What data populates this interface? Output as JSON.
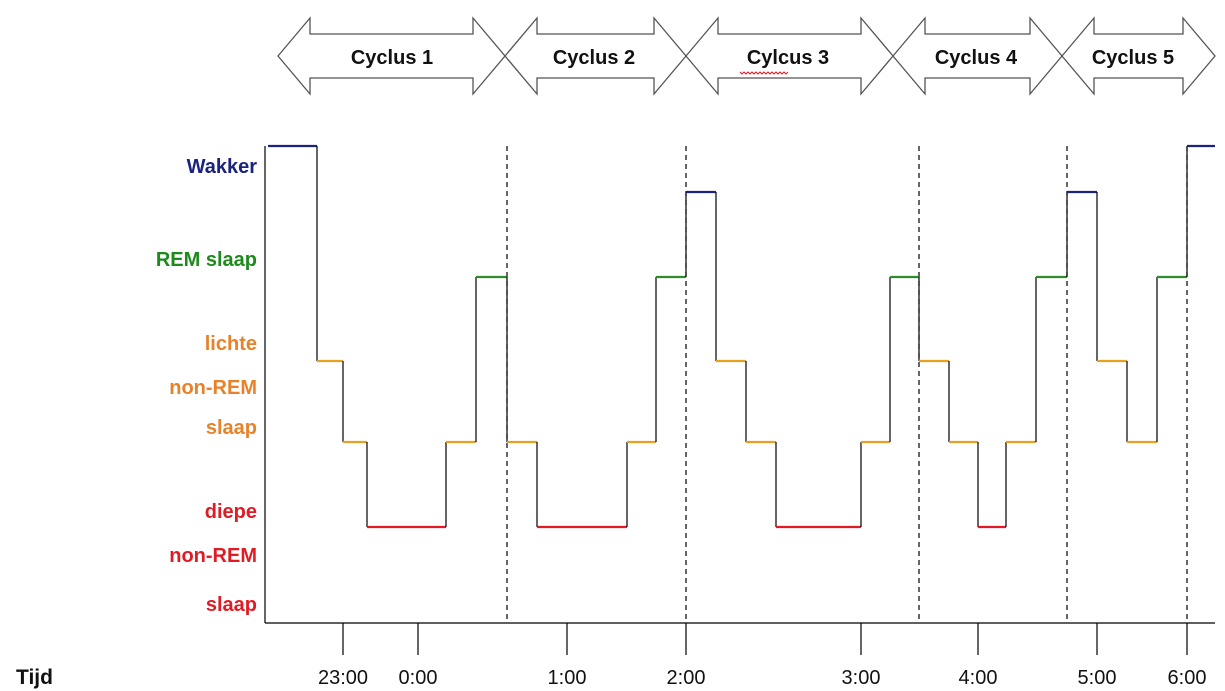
{
  "chart_data": {
    "type": "line",
    "title": "",
    "xlabel": "Tijd",
    "ylabel": "",
    "stage_levels": [
      {
        "key": "wake",
        "lines": [
          "Wakker"
        ],
        "color": "#1a237e"
      },
      {
        "key": "rem",
        "lines": [
          "REM slaap"
        ],
        "color": "#1e8a1e"
      },
      {
        "key": "light",
        "lines": [
          "lichte",
          "non-REM",
          "slaap"
        ],
        "color": "#e8822a"
      },
      {
        "key": "deep",
        "lines": [
          "diepe",
          "non-REM",
          "slaap"
        ],
        "color": "#e01b24"
      }
    ],
    "segment_colors": {
      "W": "#1a237e",
      "R": "#2e8b2e",
      "L": "#e8a020",
      "D": "#e01b24"
    },
    "x_ticks": [
      {
        "label": "23:00",
        "t": 23.0
      },
      {
        "label": "0:00",
        "t": 24.0
      },
      {
        "label": "1:00",
        "t": 25.0
      },
      {
        "label": "2:00",
        "t": 26.0
      },
      {
        "label": "3:00",
        "t": 27.0
      },
      {
        "label": "4:00",
        "t": 28.0
      },
      {
        "label": "5:00",
        "t": 29.0
      },
      {
        "label": "6:00",
        "t": 30.0
      }
    ],
    "xlim": [
      22.0,
      30.2
    ],
    "cycle_boundaries": [
      25.0,
      26.0,
      28.5,
      29.5,
      30.0
    ],
    "cycles": [
      {
        "label": "Cyclus 1",
        "start": 22.0,
        "end": 25.0
      },
      {
        "label": "Cyclus 2",
        "start": 25.0,
        "end": 26.0
      },
      {
        "label": "Cylcus 3",
        "start": 26.0,
        "end": 28.5
      },
      {
        "label": "Cyclus 4",
        "start": 28.5,
        "end": 29.5
      },
      {
        "label": "Cyclus 5",
        "start": 29.5,
        "end": 30.0
      }
    ],
    "hypnogram": [
      {
        "start": 22.0,
        "end": 22.5,
        "stage": "W",
        "level": 0
      },
      {
        "start": 22.5,
        "end": 23.0,
        "stage": "L",
        "level": 2
      },
      {
        "start": 23.0,
        "end": 23.5,
        "stage": "L",
        "level": 3
      },
      {
        "start": 23.5,
        "end": 24.5,
        "stage": "D",
        "level": 4
      },
      {
        "start": 24.5,
        "end": 24.75,
        "stage": "L",
        "level": 3
      },
      {
        "start": 24.75,
        "end": 25.0,
        "stage": "R",
        "level": 1
      },
      {
        "start": 25.0,
        "end": 25.25,
        "stage": "L",
        "level": 3
      },
      {
        "start": 25.25,
        "end": 25.75,
        "stage": "D",
        "level": 4
      },
      {
        "start": 25.75,
        "end": 26.0,
        "stage": "L",
        "level": 3
      },
      {
        "start": 26.0,
        "end": 26.25,
        "stage": "R",
        "level": 1
      },
      {
        "start": 26.25,
        "end": 26.5,
        "stage": "W",
        "level": 0.5
      },
      {
        "start": 26.5,
        "end": 27.0,
        "stage": "L",
        "level": 2
      },
      {
        "start": 27.0,
        "end": 27.5,
        "stage": "L",
        "level": 3
      },
      {
        "start": 27.5,
        "end": 27.75,
        "stage": "D",
        "level": 4
      },
      {
        "start": 27.75,
        "end": 28.0,
        "stage": "L",
        "level": 3
      },
      {
        "start": 28.0,
        "end": 28.5,
        "stage": "R",
        "level": 1
      },
      {
        "start": 28.5,
        "end": 28.75,
        "stage": "L",
        "level": 2
      },
      {
        "start": 28.75,
        "end": 29.0,
        "stage": "L",
        "level": 3
      },
      {
        "start": 29.0,
        "end": 29.25,
        "stage": "D",
        "level": 4
      },
      {
        "start": 29.25,
        "end": 29.5,
        "stage": "R",
        "level": 1
      },
      {
        "start": 29.5,
        "end": 29.75,
        "stage": "W",
        "level": 0.5
      },
      {
        "start": 29.75,
        "end": 30.0,
        "stage": "L",
        "level": 2
      },
      {
        "start": 30.0,
        "end": 30.2,
        "stage": "W",
        "level": 0
      }
    ]
  }
}
